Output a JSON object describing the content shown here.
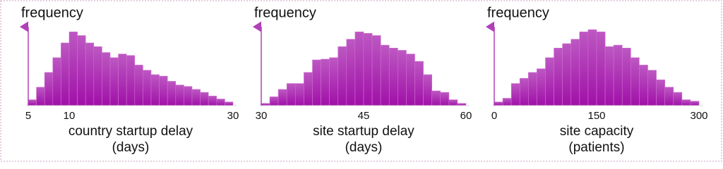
{
  "chart_data": [
    {
      "type": "histogram",
      "ylabel": "frequency",
      "xlabel": [
        "country startup delay",
        "(days)"
      ],
      "color": "#a010a8",
      "bins": [
        5,
        6,
        7,
        8,
        9,
        10,
        11,
        12,
        13,
        14,
        15,
        16,
        17,
        18,
        19,
        20,
        21,
        22,
        23,
        24,
        25,
        26,
        27,
        28,
        29,
        30
      ],
      "values": [
        8,
        25,
        45,
        65,
        85,
        100,
        95,
        85,
        80,
        72,
        65,
        70,
        68,
        55,
        48,
        42,
        40,
        33,
        28,
        26,
        22,
        18,
        13,
        9,
        5
      ],
      "xlim": [
        5,
        30
      ],
      "xticks": [
        5,
        10,
        30
      ],
      "ylim": [
        0,
        105
      ]
    },
    {
      "type": "histogram",
      "ylabel": "frequency",
      "xlabel": [
        "site startup delay",
        "(days)"
      ],
      "color": "#a010a8",
      "bins": [
        30,
        31.25,
        32.5,
        33.75,
        35,
        36.25,
        37.5,
        38.75,
        40,
        41.25,
        42.5,
        43.75,
        45,
        46.25,
        47.5,
        48.75,
        50,
        51.25,
        52.5,
        53.75,
        55,
        56.25,
        57.5,
        58.75,
        60
      ],
      "values": [
        3,
        12,
        22,
        30,
        30,
        45,
        62,
        63,
        65,
        80,
        90,
        100,
        98,
        95,
        82,
        78,
        75,
        70,
        60,
        42,
        20,
        18,
        8,
        3
      ],
      "xlim": [
        30,
        60
      ],
      "xticks": [
        30,
        45,
        60
      ],
      "ylim": [
        0,
        105
      ]
    },
    {
      "type": "histogram",
      "ylabel": "frequency",
      "xlabel": [
        "site capacity",
        "(patients)"
      ],
      "color": "#a010a8",
      "bins": [
        0,
        12.5,
        25,
        37.5,
        50,
        62.5,
        75,
        87.5,
        100,
        112.5,
        125,
        137.5,
        150,
        162.5,
        175,
        187.5,
        200,
        212.5,
        225,
        237.5,
        250,
        262.5,
        275,
        287.5,
        300
      ],
      "values": [
        5,
        10,
        30,
        37,
        45,
        50,
        65,
        78,
        84,
        90,
        100,
        103,
        100,
        80,
        82,
        78,
        65,
        55,
        48,
        35,
        25,
        18,
        8,
        6
      ],
      "xlim": [
        0,
        300
      ],
      "xticks": [
        0,
        150,
        300
      ],
      "ylim": [
        0,
        105
      ]
    }
  ]
}
